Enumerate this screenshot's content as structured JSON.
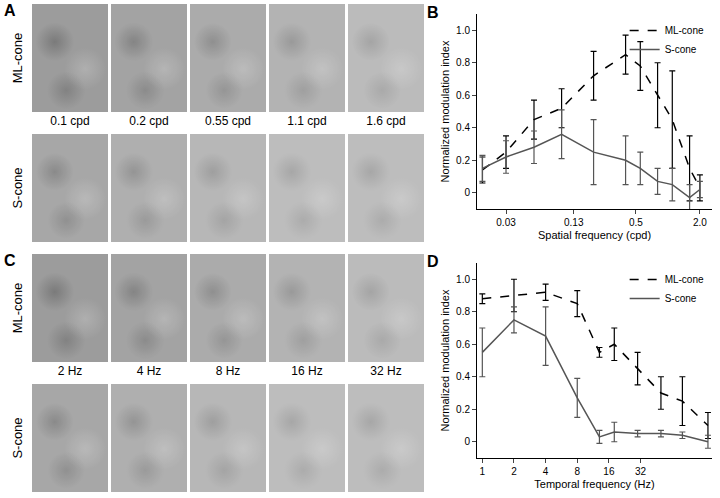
{
  "chart_data": [
    {
      "type": "line",
      "title": "B",
      "x_label": "Spatial frequency (cpd)",
      "y_label": "Normalized modulation index",
      "log": "x",
      "legend": "upper right",
      "grid": false,
      "xlim": [
        0.016,
        2.6
      ],
      "xticks": [
        0.03,
        0.13,
        0.5,
        {
          "value": 2,
          "label": "2.0"
        }
      ],
      "ylim": [
        -0.1,
        1.1
      ],
      "yticks": [
        0,
        0.2,
        0.4,
        0.6,
        0.8,
        {
          "value": 1,
          "label": "1.0"
        }
      ],
      "x": [
        0.018,
        0.03,
        0.055,
        0.1,
        0.2,
        0.4,
        0.55,
        0.8,
        1.1,
        1.6,
        2.0
      ],
      "series": [
        {
          "name": "ML-cone",
          "color": "#000000",
          "line_style": "dashed",
          "values": [
            0.14,
            0.25,
            0.45,
            0.52,
            0.72,
            0.85,
            0.78,
            0.6,
            0.45,
            0.15,
            0.03
          ],
          "errors": [
            0.08,
            0.1,
            0.12,
            0.12,
            0.15,
            0.12,
            0.15,
            0.2,
            0.3,
            0.2,
            0.08
          ]
        },
        {
          "name": "S-cone",
          "color": "#555555",
          "line_style": "solid",
          "values": [
            0.15,
            0.22,
            0.28,
            0.36,
            0.25,
            0.2,
            0.15,
            0.07,
            0.05,
            -0.03,
            0.02
          ],
          "errors": [
            0.08,
            0.1,
            0.1,
            0.15,
            0.2,
            0.15,
            0.1,
            0.08,
            0.1,
            0.08,
            0.05
          ]
        }
      ]
    },
    {
      "type": "line",
      "title": "D",
      "x_label": "Temporal frequency (Hz)",
      "y_label": "Normalized modulation index",
      "log": "x",
      "legend": "upper right",
      "grid": false,
      "xlim": [
        0.89,
        153
      ],
      "xticks": [
        1,
        2,
        4,
        8,
        16,
        32
      ],
      "ylim": [
        -0.1,
        1.1
      ],
      "yticks": [
        0,
        0.2,
        0.4,
        0.6,
        0.8,
        {
          "value": 1,
          "label": "1.0"
        }
      ],
      "x": [
        1,
        2,
        4,
        8,
        13,
        18,
        30,
        50,
        80,
        140
      ],
      "series": [
        {
          "name": "ML-cone",
          "color": "#000000",
          "line_style": "dashed",
          "values": [
            0.88,
            0.9,
            0.92,
            0.85,
            0.55,
            0.6,
            0.45,
            0.3,
            0.25,
            0.1
          ],
          "errors": [
            0.03,
            0.1,
            0.05,
            0.08,
            0.03,
            0.1,
            0.1,
            0.1,
            0.15,
            0.08
          ]
        },
        {
          "name": "S-cone",
          "color": "#555555",
          "line_style": "solid",
          "values": [
            0.55,
            0.75,
            0.65,
            0.27,
            0.03,
            0.06,
            0.05,
            0.05,
            0.04,
            0.0
          ],
          "errors": [
            0.15,
            0.08,
            0.18,
            0.12,
            0.04,
            0.06,
            0.02,
            0.02,
            0.02,
            0.04
          ]
        }
      ]
    }
  ],
  "image_panels": [
    {
      "label": "A",
      "rows": [
        "ML-cone",
        "S-cone"
      ],
      "columns": [
        "0.1 cpd",
        "0.2 cpd",
        "0.55 cpd",
        "1.1 cpd",
        "1.6 cpd"
      ]
    },
    {
      "label": "C",
      "rows": [
        "ML-cone",
        "S-cone"
      ],
      "columns": [
        "2 Hz",
        "4 Hz",
        "8 Hz",
        "16 Hz",
        "32 Hz"
      ]
    }
  ]
}
